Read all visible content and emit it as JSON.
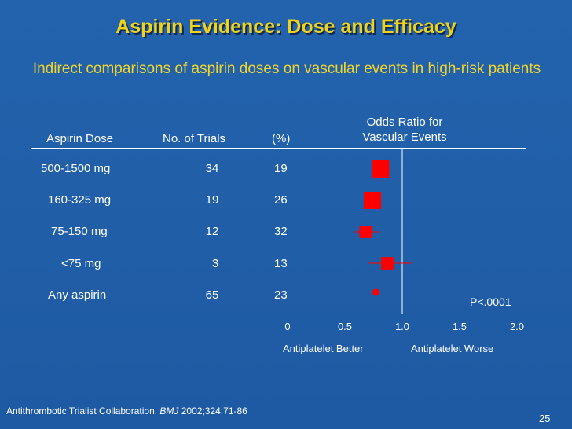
{
  "slide": {
    "title": "Aspirin Evidence: Dose and Efficacy",
    "subtitle": "Indirect comparisons of aspirin doses on vascular events in high-risk patients",
    "p_value": "P<.0001",
    "citation_prefix": "Antithrombotic Trialist Collaboration. ",
    "citation_journal": "BMJ",
    "citation_suffix": " 2002;324:71-86",
    "slide_number": "25"
  },
  "table": {
    "headers": {
      "dose": "Aspirin Dose",
      "trials": "No. of Trials",
      "percent": "(%)",
      "odds_line1": "Odds Ratio for",
      "odds_line2": "Vascular Events"
    },
    "rows": [
      {
        "dose": "500-1500 mg",
        "trials": "34",
        "percent": "19"
      },
      {
        "dose": "160-325 mg",
        "trials": "19",
        "percent": "26"
      },
      {
        "dose": "75-150 mg",
        "trials": "12",
        "percent": "32"
      },
      {
        "dose": "<75 mg",
        "trials": "3",
        "percent": "13"
      },
      {
        "dose": "Any aspirin",
        "trials": "65",
        "percent": "23"
      }
    ]
  },
  "chart_data": {
    "type": "scatter",
    "subtype": "forest-plot",
    "title": "Odds Ratio for Vascular Events",
    "xlim": [
      0,
      2.0
    ],
    "x_ticks": [
      "0",
      "0.5",
      "1.0",
      "1.5",
      "2.0"
    ],
    "x_tick_values": [
      0,
      0.5,
      1.0,
      1.5,
      2.0
    ],
    "reference_line": 1.0,
    "left_label": "Antiplatelet Better",
    "right_label": "Antiplatelet Worse",
    "categories": [
      "500-1500 mg",
      "160-325 mg",
      "75-150 mg",
      "<75 mg",
      "Any aspirin"
    ],
    "odds_ratio": [
      0.81,
      0.74,
      0.68,
      0.87,
      0.77
    ],
    "ci_low": [
      0.74,
      0.68,
      0.58,
      0.7,
      0.74
    ],
    "ci_high": [
      0.89,
      0.8,
      0.8,
      1.08,
      0.8
    ],
    "weight": [
      1.0,
      1.0,
      0.55,
      0.55,
      0.35
    ],
    "marker_color": "#ff0000"
  }
}
